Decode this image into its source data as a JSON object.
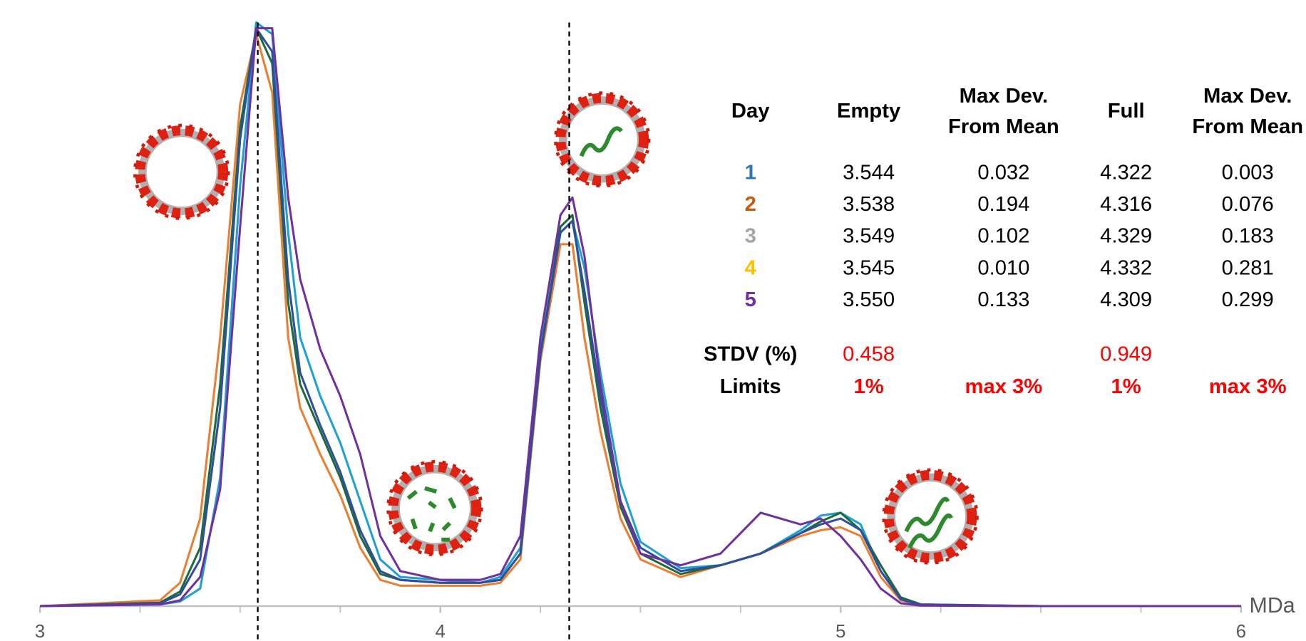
{
  "chart_data": {
    "type": "line",
    "x": [
      3.0,
      3.3,
      3.35,
      3.4,
      3.45,
      3.5,
      3.54,
      3.58,
      3.62,
      3.65,
      3.7,
      3.75,
      3.8,
      3.85,
      3.9,
      4.0,
      4.1,
      4.15,
      4.2,
      4.25,
      4.3,
      4.33,
      4.36,
      4.4,
      4.45,
      4.5,
      4.6,
      4.7,
      4.8,
      4.9,
      4.95,
      5.0,
      5.05,
      5.1,
      5.15,
      5.2,
      5.5,
      6.0
    ],
    "series": [
      {
        "name": "1",
        "color": "#1ba1d4",
        "values": [
          0,
          0.3,
          0.8,
          3,
          22,
          72,
          100,
          98,
          64,
          46,
          36,
          28,
          18,
          8,
          5,
          4.5,
          4,
          5,
          10,
          44,
          64,
          66,
          58,
          40,
          21,
          11,
          6.5,
          7,
          9,
          13,
          15.5,
          16,
          14,
          6,
          1.5,
          0.3,
          0,
          0
        ]
      },
      {
        "name": "2",
        "color": "#ed7d31",
        "values": [
          0,
          1,
          4,
          15,
          46,
          86,
          98,
          88,
          46,
          34,
          26,
          19,
          10,
          4.5,
          3.5,
          3.5,
          3.5,
          4,
          8,
          42,
          62,
          62,
          46,
          30,
          15,
          8,
          5,
          7,
          9,
          12,
          13,
          13.5,
          12,
          5,
          1,
          0.2,
          0,
          0
        ]
      },
      {
        "name": "3",
        "color": "#1e6b3a",
        "values": [
          0,
          0.6,
          2.5,
          10,
          38,
          82,
          99,
          93,
          52,
          38,
          30,
          22,
          12,
          5.5,
          4.5,
          4,
          4,
          4.5,
          9,
          43,
          65,
          67,
          52,
          34,
          17,
          9,
          5.5,
          7,
          9,
          12.5,
          14.5,
          16,
          13,
          7,
          1.5,
          0.3,
          0,
          0
        ]
      },
      {
        "name": "4",
        "color": "#2e4f9e",
        "values": [
          0,
          0.5,
          2,
          8,
          34,
          80,
          99,
          95,
          56,
          40,
          31,
          23,
          13,
          6,
          4.5,
          4,
          4,
          4.5,
          9,
          43,
          64,
          66,
          54,
          36,
          18,
          10,
          6,
          7,
          9,
          12.5,
          14,
          15,
          13,
          6,
          1.2,
          0.2,
          0,
          0
        ]
      },
      {
        "name": "5",
        "color": "#7030a0",
        "values": [
          0,
          0.3,
          1,
          5,
          20,
          65,
          99,
          99,
          70,
          56,
          44,
          36,
          26,
          12,
          6,
          4.5,
          4.5,
          5.5,
          12,
          46,
          67,
          70,
          60,
          38,
          18,
          9,
          7,
          9,
          16,
          14,
          15,
          12,
          8,
          3,
          0.5,
          0.1,
          0,
          0
        ]
      }
    ],
    "xlim": [
      3,
      6
    ],
    "ylim": [
      0,
      100
    ],
    "xticks": [
      3,
      4,
      5,
      6
    ],
    "xminorticks": [
      3.25,
      3.5,
      3.75,
      4.25,
      4.5,
      4.75,
      5.25,
      5.5,
      5.75
    ],
    "reference_lines": [
      3.544,
      4.322
    ],
    "x_label": "MDa",
    "table": {
      "header": [
        "Day",
        "Empty",
        [
          "Max Dev.",
          "From Mean"
        ],
        "Full",
        [
          "Max Dev.",
          "From Mean"
        ]
      ],
      "day_colors": [
        "#2e75b6",
        "#c55a11",
        "#a5a5a5",
        "#ffc000",
        "#7030a0"
      ],
      "rows": [
        [
          "3.544",
          "0.032",
          "4.322",
          "0.003"
        ],
        [
          "3.538",
          "0.194",
          "4.316",
          "0.076"
        ],
        [
          "3.549",
          "0.102",
          "4.329",
          "0.183"
        ],
        [
          "3.545",
          "0.010",
          "4.332",
          "0.281"
        ],
        [
          "3.550",
          "0.133",
          "4.309",
          "0.299"
        ]
      ],
      "stdv": {
        "label": "STDV (%)",
        "empty": "0.458",
        "full": "0.949"
      },
      "limits": {
        "label": "Limits",
        "empty": "1%",
        "dev_empty": "max  3%",
        "full": "1%",
        "dev_full": "max  3%"
      }
    }
  }
}
